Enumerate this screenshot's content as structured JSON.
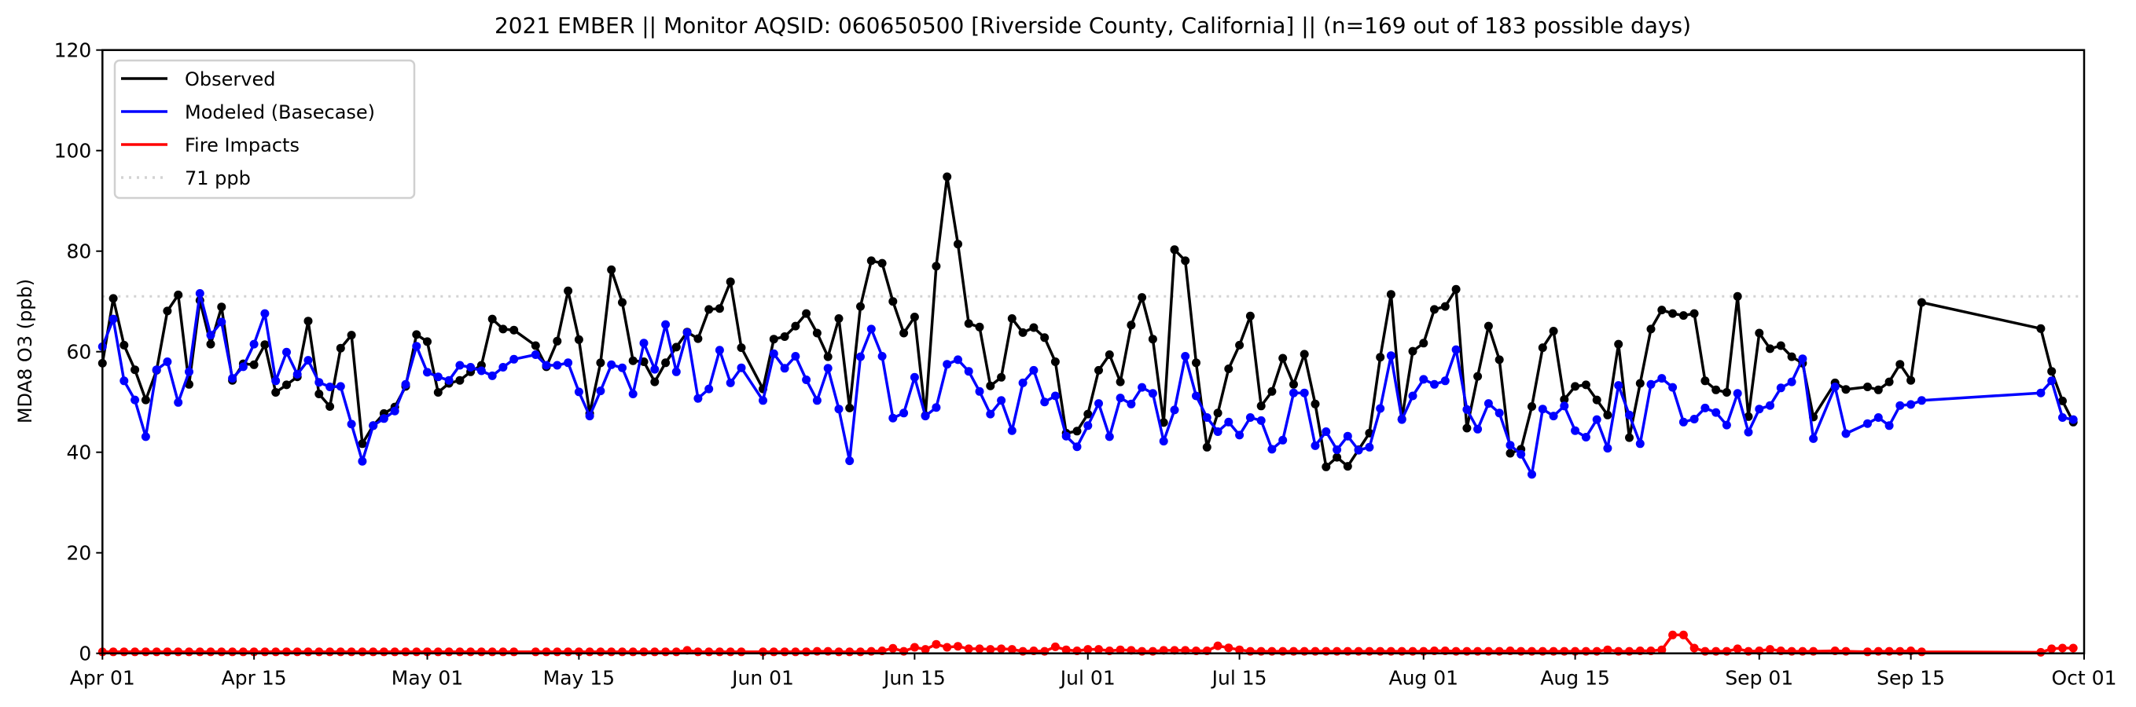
{
  "chart_data": {
    "type": "line",
    "title": "2021 EMBER || Monitor AQSID: 060650500 [Riverside County, California] || (n=169 out of 183 possible days)",
    "xlabel": "",
    "ylabel": "MDA8 O3 (ppb)",
    "x_start_date": "2021-04-01",
    "x_unit": "days since Apr 01",
    "xlim": [
      0,
      183
    ],
    "ylim": [
      0,
      120
    ],
    "yticks": [
      0,
      20,
      40,
      60,
      80,
      100,
      120
    ],
    "xticks": [
      {
        "day": 0,
        "label": "Apr 01"
      },
      {
        "day": 14,
        "label": "Apr 15"
      },
      {
        "day": 30,
        "label": "May 01"
      },
      {
        "day": 44,
        "label": "May 15"
      },
      {
        "day": 61,
        "label": "Jun 01"
      },
      {
        "day": 75,
        "label": "Jun 15"
      },
      {
        "day": 91,
        "label": "Jul 01"
      },
      {
        "day": 105,
        "label": "Jul 15"
      },
      {
        "day": 122,
        "label": "Aug 01"
      },
      {
        "day": 136,
        "label": "Aug 15"
      },
      {
        "day": 153,
        "label": "Sep 01"
      },
      {
        "day": 167,
        "label": "Sep 15"
      },
      {
        "day": 183,
        "label": "Oct 01"
      }
    ],
    "legend_position": "top-left",
    "threshold": {
      "name": "71 ppb",
      "value": 71,
      "color": "#d3d3d3"
    },
    "series": [
      {
        "name": "Observed",
        "color": "#000000",
        "values": [
          57.7,
          70.6,
          61.3,
          56.4,
          50.4,
          56.3,
          68.1,
          71.3,
          53.5,
          70.2,
          61.5,
          68.9,
          54.3,
          57.6,
          57.4,
          61.4,
          51.9,
          53.4,
          55.0,
          66.1,
          51.6,
          49.1,
          60.7,
          63.3,
          41.7,
          45.3,
          47.7,
          49.0,
          53.1,
          63.4,
          62.0,
          51.9,
          53.7,
          54.3,
          56.0,
          57.3,
          66.5,
          64.5,
          64.3,
          null,
          61.2,
          57.0,
          62.1,
          72.1,
          62.4,
          47.7,
          57.8,
          76.3,
          69.8,
          58.2,
          58.0,
          54.0,
          57.8,
          60.9,
          63.9,
          62.6,
          68.4,
          68.6,
          73.9,
          60.8,
          null,
          52.6,
          62.5,
          63.0,
          65.1,
          67.6,
          63.7,
          59.0,
          66.6,
          48.8,
          69.0,
          78.1,
          77.6,
          70.0,
          63.7,
          66.9,
          47.3,
          77.0,
          94.8,
          81.4,
          65.6,
          64.9,
          53.2,
          54.9,
          66.6,
          63.8,
          64.8,
          62.8,
          58.0,
          43.8,
          44.2,
          47.6,
          56.3,
          59.4,
          54.0,
          65.3,
          70.8,
          62.5,
          45.9,
          80.3,
          78.1,
          57.8,
          41.0,
          47.8,
          56.6,
          61.3,
          67.1,
          49.2,
          52.1,
          58.7,
          53.5,
          59.5,
          49.6,
          37.1,
          39.0,
          37.2,
          40.5,
          43.8,
          58.9,
          71.4,
          46.6,
          60.1,
          61.7,
          68.4,
          69.0,
          72.4,
          44.8,
          55.1,
          65.1,
          58.4,
          39.8,
          40.6,
          49.1,
          60.8,
          64.1,
          50.5,
          53.1,
          53.4,
          50.4,
          47.4,
          61.5,
          42.9,
          53.7,
          64.5,
          68.3,
          67.6,
          67.2,
          67.6,
          54.2,
          52.4,
          51.9,
          71.0,
          47.1,
          63.7,
          60.6,
          61.2,
          59.0,
          57.7,
          47.0,
          null,
          53.8,
          52.5,
          null,
          53.0,
          52.4,
          54.0,
          57.5,
          54.3,
          69.8,
          null,
          null,
          null,
          null,
          null,
          null,
          null,
          null,
          null,
          null,
          64.6,
          56.1,
          50.2,
          46.0
        ]
      },
      {
        "name": "Modeled (Basecase)",
        "color": "#0000ff",
        "values": [
          61.0,
          66.5,
          54.2,
          50.4,
          43.1,
          56.4,
          58.0,
          49.9,
          56.0,
          71.6,
          63.3,
          65.9,
          54.7,
          57.0,
          61.5,
          67.6,
          54.2,
          59.9,
          55.5,
          58.3,
          53.9,
          53.0,
          53.1,
          45.6,
          38.2,
          45.3,
          46.7,
          48.2,
          53.5,
          61.1,
          55.9,
          55.0,
          54.3,
          57.3,
          56.9,
          56.2,
          55.2,
          56.9,
          58.5,
          null,
          59.4,
          57.3,
          57.3,
          57.8,
          52.0,
          47.2,
          52.2,
          57.4,
          56.8,
          51.6,
          61.7,
          56.5,
          65.4,
          56.0,
          63.8,
          50.7,
          52.6,
          60.3,
          53.8,
          56.8,
          null,
          50.3,
          59.6,
          56.7,
          59.1,
          54.4,
          50.3,
          56.7,
          48.6,
          38.3,
          59.0,
          64.5,
          59.1,
          46.8,
          47.8,
          54.9,
          47.2,
          48.9,
          57.5,
          58.4,
          56.1,
          52.1,
          47.6,
          50.3,
          44.3,
          53.8,
          56.3,
          50.0,
          51.2,
          43.2,
          41.1,
          45.3,
          49.7,
          43.1,
          50.8,
          49.6,
          52.9,
          51.7,
          42.2,
          48.4,
          59.1,
          51.2,
          46.9,
          44.1,
          46.0,
          43.4,
          46.9,
          46.3,
          40.6,
          42.4,
          51.8,
          51.8,
          41.3,
          44.1,
          40.5,
          43.2,
          40.4,
          41.0,
          48.7,
          59.2,
          46.5,
          51.2,
          54.5,
          53.5,
          54.2,
          60.4,
          48.5,
          44.6,
          49.7,
          47.8,
          41.4,
          39.6,
          35.6,
          48.6,
          47.2,
          49.2,
          44.3,
          43.0,
          46.5,
          40.8,
          53.3,
          47.4,
          41.7,
          53.5,
          54.7,
          52.9,
          46.0,
          46.6,
          48.8,
          47.9,
          45.4,
          51.7,
          44.0,
          48.6,
          49.3,
          52.8,
          54.0,
          58.6,
          42.7,
          null,
          53.0,
          43.7,
          null,
          45.7,
          46.9,
          45.3,
          49.3,
          49.5,
          50.3,
          null,
          null,
          null,
          null,
          null,
          null,
          null,
          null,
          null,
          null,
          51.8,
          54.2,
          46.9,
          46.5
        ]
      },
      {
        "name": "Fire Impacts",
        "color": "#ff0000",
        "values": [
          0.3,
          0.3,
          0.3,
          0.3,
          0.3,
          0.3,
          0.3,
          0.3,
          0.3,
          0.3,
          0.3,
          0.3,
          0.3,
          0.3,
          0.3,
          0.3,
          0.3,
          0.3,
          0.3,
          0.3,
          0.3,
          0.3,
          0.3,
          0.3,
          0.3,
          0.3,
          0.3,
          0.3,
          0.3,
          0.3,
          0.3,
          0.3,
          0.3,
          0.3,
          0.3,
          0.3,
          0.3,
          0.3,
          0.3,
          null,
          0.3,
          0.3,
          0.3,
          0.3,
          0.3,
          0.3,
          0.3,
          0.3,
          0.3,
          0.3,
          0.3,
          0.3,
          0.3,
          0.3,
          0.6,
          0.3,
          0.3,
          0.3,
          0.3,
          0.3,
          null,
          0.3,
          0.3,
          0.3,
          0.3,
          0.3,
          0.4,
          0.4,
          0.3,
          0.3,
          0.3,
          0.4,
          0.5,
          1.0,
          0.4,
          1.2,
          0.8,
          1.8,
          1.2,
          1.4,
          0.9,
          0.9,
          0.8,
          0.9,
          0.8,
          0.4,
          0.5,
          0.4,
          1.3,
          0.7,
          0.5,
          0.8,
          0.8,
          0.5,
          0.7,
          0.6,
          0.4,
          0.4,
          0.6,
          0.6,
          0.6,
          0.5,
          0.5,
          1.5,
          1.1,
          0.7,
          0.4,
          0.4,
          0.4,
          0.4,
          0.4,
          0.4,
          0.4,
          0.4,
          0.4,
          0.4,
          0.4,
          0.4,
          0.4,
          0.4,
          0.4,
          0.4,
          0.4,
          0.5,
          0.5,
          0.4,
          0.4,
          0.4,
          0.4,
          0.4,
          0.5,
          0.4,
          0.4,
          0.4,
          0.4,
          0.4,
          0.4,
          0.4,
          0.4,
          0.7,
          0.4,
          0.4,
          0.5,
          0.5,
          0.7,
          3.65,
          3.65,
          1.05,
          0.4,
          0.4,
          0.4,
          0.9,
          0.4,
          0.5,
          0.8,
          0.5,
          0.4,
          0.4,
          0.4,
          null,
          0.5,
          0.4,
          null,
          0.3,
          0.4,
          0.4,
          0.4,
          0.5,
          0.3,
          null,
          null,
          null,
          null,
          null,
          null,
          null,
          null,
          null,
          null,
          0.2,
          0.9,
          1.05,
          1.05
        ]
      }
    ]
  }
}
